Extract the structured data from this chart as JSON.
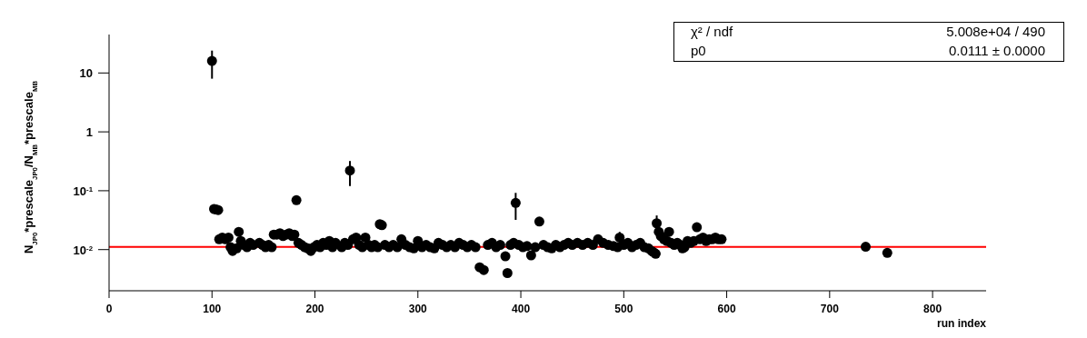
{
  "chart_data": {
    "type": "scatter",
    "xlabel": "run index",
    "ylabel": "N$_{JP0}$*prescale$_{JP0}$/N$_{MB}$*prescale$_{MB}$",
    "xlim": [
      0,
      852
    ],
    "xticks": [
      0,
      100,
      200,
      300,
      400,
      500,
      600,
      700,
      800
    ],
    "ylim": [
      0.002,
      45
    ],
    "yticks": [
      {
        "value": 0.01,
        "label": "10$^{-2}$"
      },
      {
        "value": 0.1,
        "label": "10$^{-1}$"
      },
      1,
      10
    ],
    "log": "y",
    "marker": "circle",
    "ref_lines": [
      {
        "axis": "y",
        "value": 0.0111,
        "color": "#ff0000"
      }
    ],
    "annotations": [
      "χ² / ndf",
      "5.008e+04 / 490",
      "p0",
      "0.0111 ± 0.0000"
    ],
    "series": [
      {
        "color": "#000000",
        "x": [
          100,
          102,
          104,
          106,
          107,
          110,
          113,
          116,
          118,
          120,
          124,
          126,
          128,
          131,
          134,
          137,
          140,
          146,
          149,
          152,
          155,
          158,
          160,
          163,
          166,
          169,
          172,
          175,
          178,
          180,
          182,
          184,
          187,
          190,
          193,
          196,
          199,
          202,
          205,
          208,
          211,
          214,
          217,
          220,
          226,
          229,
          232,
          234,
          237,
          240,
          243,
          246,
          249,
          252,
          255,
          258,
          261,
          263,
          265,
          268,
          272,
          276,
          280,
          284,
          288,
          292,
          296,
          300,
          304,
          308,
          312,
          316,
          320,
          324,
          328,
          332,
          336,
          340,
          344,
          348,
          352,
          356,
          360,
          364,
          368,
          372,
          376,
          380,
          385,
          387,
          390,
          393,
          395,
          398,
          402,
          406,
          410,
          414,
          418,
          422,
          426,
          430,
          434,
          438,
          442,
          446,
          450,
          455,
          460,
          465,
          470,
          475,
          480,
          485,
          490,
          494,
          496,
          500,
          504,
          508,
          512,
          516,
          520,
          524,
          527,
          529,
          531,
          532,
          534,
          536,
          539,
          542,
          544,
          546,
          549,
          552,
          555,
          557,
          559,
          562,
          565,
          568,
          571,
          574,
          577,
          580,
          583,
          586,
          589,
          592,
          595,
          735,
          756
        ],
        "values": [
          16,
          0.049,
          0.048,
          0.047,
          0.015,
          0.016,
          0.015,
          0.016,
          0.011,
          0.0095,
          0.0105,
          0.02,
          0.014,
          0.012,
          0.011,
          0.013,
          0.012,
          0.013,
          0.012,
          0.011,
          0.012,
          0.011,
          0.018,
          0.018,
          0.019,
          0.017,
          0.018,
          0.019,
          0.017,
          0.018,
          0.069,
          0.013,
          0.012,
          0.011,
          0.0105,
          0.0095,
          0.011,
          0.012,
          0.011,
          0.013,
          0.012,
          0.014,
          0.011,
          0.013,
          0.011,
          0.013,
          0.012,
          0.22,
          0.015,
          0.016,
          0.012,
          0.011,
          0.016,
          0.012,
          0.011,
          0.012,
          0.011,
          0.027,
          0.026,
          0.012,
          0.011,
          0.012,
          0.011,
          0.015,
          0.012,
          0.011,
          0.0105,
          0.014,
          0.011,
          0.012,
          0.011,
          0.0105,
          0.013,
          0.012,
          0.011,
          0.012,
          0.011,
          0.013,
          0.012,
          0.011,
          0.012,
          0.011,
          0.005,
          0.0045,
          0.012,
          0.013,
          0.011,
          0.012,
          0.0077,
          0.004,
          0.012,
          0.013,
          0.062,
          0.012,
          0.011,
          0.0115,
          0.008,
          0.011,
          0.03,
          0.012,
          0.011,
          0.0105,
          0.012,
          0.011,
          0.012,
          0.013,
          0.012,
          0.013,
          0.012,
          0.013,
          0.012,
          0.015,
          0.013,
          0.012,
          0.0115,
          0.011,
          0.016,
          0.012,
          0.013,
          0.011,
          0.012,
          0.013,
          0.011,
          0.0105,
          0.0095,
          0.009,
          0.0085,
          0.028,
          0.02,
          0.017,
          0.015,
          0.014,
          0.02,
          0.013,
          0.012,
          0.013,
          0.012,
          0.0105,
          0.011,
          0.014,
          0.013,
          0.014,
          0.024,
          0.015,
          0.016,
          0.014,
          0.015,
          0.015,
          0.016,
          0.015,
          0.015,
          0.0112,
          0.0088
        ],
        "errors": [
          8,
          null,
          null,
          null,
          null,
          null,
          null,
          null,
          null,
          null,
          null,
          null,
          null,
          null,
          null,
          null,
          null,
          null,
          null,
          null,
          null,
          null,
          null,
          null,
          null,
          null,
          null,
          null,
          null,
          null,
          null,
          null,
          null,
          null,
          null,
          null,
          null,
          null,
          null,
          null,
          null,
          null,
          null,
          null,
          null,
          null,
          null,
          0.1,
          null,
          null,
          null,
          null,
          null,
          null,
          null,
          null,
          null,
          null,
          null,
          null,
          null,
          null,
          null,
          null,
          null,
          null,
          null,
          null,
          null,
          null,
          null,
          null,
          null,
          null,
          null,
          null,
          null,
          null,
          null,
          null,
          null,
          null,
          null,
          null,
          null,
          null,
          null,
          null,
          null,
          null,
          null,
          null,
          0.03,
          null,
          null,
          null,
          null,
          null,
          null,
          null,
          null,
          null,
          null,
          null,
          null,
          null,
          null,
          null,
          null,
          null,
          null,
          null,
          null,
          null,
          null,
          null,
          0.004,
          null,
          null,
          null,
          null,
          null,
          null,
          null,
          null,
          null,
          null,
          0.01,
          null,
          null,
          null,
          null,
          null,
          null,
          null,
          null,
          null,
          null,
          null,
          null,
          null,
          null,
          null,
          null,
          null,
          null,
          null,
          null,
          null,
          null,
          null,
          null,
          null
        ]
      }
    ]
  }
}
